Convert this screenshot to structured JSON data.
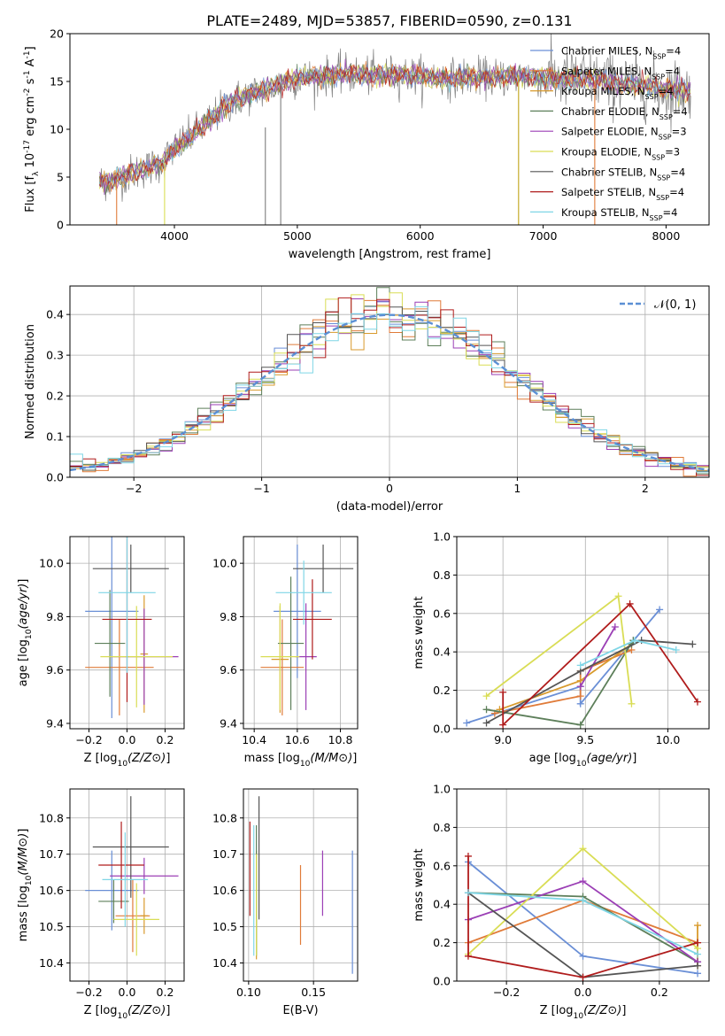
{
  "figure": {
    "title": "PLATE=2489, MJD=53857, FIBERID=0590, z=0.131"
  },
  "series": [
    {
      "name": "Chabrier MILES",
      "nssp": "4",
      "color": "#6a8fd6"
    },
    {
      "name": "Salpeter MILES",
      "nssp": "4",
      "color": "#e07b39"
    },
    {
      "name": "Kroupa MILES",
      "nssp": "4",
      "color": "#d89a2c"
    },
    {
      "name": "Chabrier ELODIE",
      "nssp": "4",
      "color": "#5d7f5a"
    },
    {
      "name": "Salpeter ELODIE",
      "nssp": "3",
      "color": "#9b3fb5"
    },
    {
      "name": "Kroupa ELODIE",
      "nssp": "3",
      "color": "#d9dd55"
    },
    {
      "name": "Chabrier STELIB",
      "nssp": "4",
      "color": "#555555"
    },
    {
      "name": "Salpeter STELIB",
      "nssp": "4",
      "color": "#b01c1c"
    },
    {
      "name": "Kroupa STELIB",
      "nssp": "4",
      "color": "#7fd6e6"
    }
  ],
  "chart_data": [
    {
      "id": "spectrum",
      "type": "line",
      "xlabel": "wavelength [Angstrom, rest frame]",
      "ylabel": "Flux [f_λ 10^-17 erg cm^-2 s^-1 A^-1]",
      "xlim": [
        3150,
        8350
      ],
      "ylim": [
        0,
        20
      ],
      "xticks": [
        4000,
        5000,
        6000,
        7000,
        8000
      ],
      "yticks": [
        0,
        5,
        10,
        15,
        20
      ],
      "grid": false,
      "legend": "top-right",
      "data_range_x": [
        3390,
        8200
      ],
      "continuum": [
        [
          3390,
          4.5
        ],
        [
          3500,
          4.6
        ],
        [
          3600,
          5.2
        ],
        [
          3700,
          5.6
        ],
        [
          3800,
          6.0
        ],
        [
          3900,
          6.5
        ],
        [
          4000,
          8.0
        ],
        [
          4100,
          8.9
        ],
        [
          4200,
          10.0
        ],
        [
          4300,
          11.0
        ],
        [
          4400,
          12.3
        ],
        [
          4500,
          13.1
        ],
        [
          4600,
          13.6
        ],
        [
          4700,
          14.0
        ],
        [
          4800,
          14.4
        ],
        [
          4900,
          15.0
        ],
        [
          5000,
          15.3
        ],
        [
          5200,
          15.5
        ],
        [
          5400,
          15.8
        ],
        [
          5600,
          15.6
        ],
        [
          5800,
          15.7
        ],
        [
          6000,
          15.6
        ],
        [
          6200,
          15.3
        ],
        [
          6400,
          15.5
        ],
        [
          6600,
          15.4
        ],
        [
          6800,
          15.6
        ],
        [
          7000,
          15.4
        ],
        [
          7200,
          15.2
        ],
        [
          7400,
          15.3
        ],
        [
          7600,
          14.8
        ],
        [
          7800,
          14.6
        ],
        [
          8000,
          14.2
        ],
        [
          8200,
          14.0
        ]
      ]
    },
    {
      "id": "residuals",
      "type": "line",
      "xlabel": "(data-model)/error",
      "ylabel": "Normed distribution",
      "xlim": [
        -2.5,
        2.5
      ],
      "ylim": [
        0,
        0.47
      ],
      "xticks": [
        -2,
        -1,
        0,
        1,
        2
      ],
      "yticks": [
        0.0,
        0.1,
        0.2,
        0.3,
        0.4
      ],
      "grid": true,
      "legend": "top-right",
      "reference_curve": {
        "label": "𝒩(0, 1)",
        "mean": 0,
        "sigma": 1,
        "color": "#5b8fd4"
      },
      "bins": {
        "start": -2.5,
        "width": 0.1,
        "count": 50
      }
    },
    {
      "id": "age-vs-Z",
      "type": "scatter",
      "xlabel": "Z [log10(Z/Z⊙)]",
      "ylabel": "age  [log10(age/yr)]",
      "xlim": [
        -0.3,
        0.3
      ],
      "ylim": [
        9.38,
        10.1
      ],
      "xticks": [
        -0.2,
        0.0,
        0.2
      ],
      "yticks": [
        9.4,
        9.6,
        9.8,
        10.0
      ],
      "grid": true,
      "points": [
        {
          "series": 0,
          "x": -0.08,
          "xerr": 0.14,
          "y": 9.82,
          "yerr": 0.4
        },
        {
          "series": 1,
          "x": -0.04,
          "xerr": 0.18,
          "y": 9.61,
          "yerr": 0.18
        },
        {
          "series": 2,
          "x": 0.09,
          "xerr": 0.02,
          "y": 9.66,
          "yerr": 0.22
        },
        {
          "series": 3,
          "x": -0.09,
          "xerr": 0.08,
          "y": 9.7,
          "yerr": 0.2
        },
        {
          "series": 4,
          "x": 0.09,
          "xerr": 0.18,
          "y": 9.65,
          "yerr": 0.18
        },
        {
          "series": 5,
          "x": 0.05,
          "xerr": 0.19,
          "y": 9.65,
          "yerr": 0.19
        },
        {
          "series": 6,
          "x": 0.02,
          "xerr": 0.2,
          "y": 9.98,
          "yerr": 0.09
        },
        {
          "series": 7,
          "x": 0.0,
          "xerr": 0.13,
          "y": 9.79,
          "yerr": 0.31
        },
        {
          "series": 8,
          "x": 0.0,
          "xerr": 0.15,
          "y": 9.89,
          "yerr": 0.3
        }
      ]
    },
    {
      "id": "age-vs-mass",
      "type": "scatter",
      "xlabel": "mass [log10(M/M⊙)]",
      "ylabel": "",
      "xlim": [
        10.35,
        10.88
      ],
      "ylim": [
        9.38,
        10.1
      ],
      "xticks": [
        10.4,
        10.6,
        10.8
      ],
      "yticks": [
        9.4,
        9.6,
        9.8,
        10.0
      ],
      "grid": true,
      "points": [
        {
          "series": 0,
          "x": 10.6,
          "xerr": 0.11,
          "y": 9.82,
          "yerr": 0.25
        },
        {
          "series": 1,
          "x": 10.53,
          "xerr": 0.1,
          "y": 9.61,
          "yerr": 0.18
        },
        {
          "series": 2,
          "x": 10.52,
          "xerr": 0.04,
          "y": 9.64,
          "yerr": 0.2
        },
        {
          "series": 3,
          "x": 10.57,
          "xerr": 0.06,
          "y": 9.7,
          "yerr": 0.25
        },
        {
          "series": 4,
          "x": 10.64,
          "xerr": 0.05,
          "y": 9.65,
          "yerr": 0.2
        },
        {
          "series": 5,
          "x": 10.52,
          "xerr": 0.09,
          "y": 9.65,
          "yerr": 0.2
        },
        {
          "series": 6,
          "x": 10.72,
          "xerr": 0.14,
          "y": 9.98,
          "yerr": 0.09
        },
        {
          "series": 7,
          "x": 10.67,
          "xerr": 0.09,
          "y": 9.79,
          "yerr": 0.15
        },
        {
          "series": 8,
          "x": 10.63,
          "xerr": 0.13,
          "y": 9.89,
          "yerr": 0.12
        }
      ]
    },
    {
      "id": "mass-weight-vs-age",
      "type": "line",
      "xlabel": "age  [log10(age/yr)]",
      "ylabel": "mass weight",
      "xlim": [
        8.72,
        10.25
      ],
      "ylim": [
        0,
        1.0
      ],
      "xticks": [
        9.0,
        9.5,
        10.0
      ],
      "yticks": [
        0.0,
        0.2,
        0.4,
        0.6,
        0.8,
        1.0
      ],
      "grid": true,
      "lines": [
        {
          "series": 0,
          "points": [
            [
              8.78,
              0.03
            ],
            [
              9.47,
              0.22
            ],
            [
              9.47,
              0.13
            ],
            [
              9.95,
              0.62
            ]
          ]
        },
        {
          "series": 1,
          "points": [
            [
              8.95,
              0.08
            ],
            [
              9.47,
              0.17
            ],
            [
              9.47,
              0.3
            ],
            [
              9.78,
              0.41
            ]
          ]
        },
        {
          "series": 2,
          "points": [
            [
              8.98,
              0.1
            ],
            [
              9.47,
              0.25
            ],
            [
              9.78,
              0.44
            ]
          ]
        },
        {
          "series": 3,
          "points": [
            [
              8.9,
              0.1
            ],
            [
              9.47,
              0.02
            ],
            [
              9.79,
              0.46
            ],
            [
              9.78,
              0.44
            ]
          ]
        },
        {
          "series": 4,
          "points": [
            [
              9.47,
              0.22
            ],
            [
              9.68,
              0.53
            ]
          ]
        },
        {
          "series": 5,
          "points": [
            [
              8.9,
              0.17
            ],
            [
              9.7,
              0.69
            ],
            [
              9.78,
              0.13
            ]
          ]
        },
        {
          "series": 6,
          "points": [
            [
              8.9,
              0.03
            ],
            [
              9.47,
              0.3
            ],
            [
              9.84,
              0.46
            ],
            [
              10.15,
              0.44
            ]
          ]
        },
        {
          "series": 7,
          "points": [
            [
              9.0,
              0.19
            ],
            [
              9.0,
              0.02
            ],
            [
              9.77,
              0.65
            ],
            [
              10.18,
              0.14
            ]
          ]
        },
        {
          "series": 8,
          "points": [
            [
              9.47,
              0.33
            ],
            [
              9.8,
              0.46
            ],
            [
              10.05,
              0.41
            ]
          ]
        }
      ]
    },
    {
      "id": "mass-vs-Z",
      "type": "scatter",
      "xlabel": "Z [log10(Z/Z⊙)]",
      "ylabel": "mass [log10(M/M⊙)]",
      "xlim": [
        -0.3,
        0.3
      ],
      "ylim": [
        10.35,
        10.88
      ],
      "xticks": [
        -0.2,
        0.0,
        0.2
      ],
      "yticks": [
        10.4,
        10.5,
        10.6,
        10.7,
        10.8
      ],
      "grid": true,
      "points": [
        {
          "series": 0,
          "x": -0.08,
          "xerr": 0.14,
          "y": 10.6,
          "yerr": 0.11
        },
        {
          "series": 1,
          "x": 0.03,
          "xerr": 0.09,
          "y": 10.53,
          "yerr": 0.1
        },
        {
          "series": 2,
          "x": 0.09,
          "xerr": 0.02,
          "y": 10.53,
          "yerr": 0.05
        },
        {
          "series": 3,
          "x": -0.07,
          "xerr": 0.08,
          "y": 10.57,
          "yerr": 0.06
        },
        {
          "series": 4,
          "x": 0.09,
          "xerr": 0.18,
          "y": 10.64,
          "yerr": 0.05
        },
        {
          "series": 5,
          "x": 0.05,
          "xerr": 0.12,
          "y": 10.52,
          "yerr": 0.1
        },
        {
          "series": 6,
          "x": 0.02,
          "xerr": 0.2,
          "y": 10.72,
          "yerr": 0.14
        },
        {
          "series": 7,
          "x": -0.03,
          "xerr": 0.12,
          "y": 10.67,
          "yerr": 0.12
        },
        {
          "series": 8,
          "x": -0.01,
          "xerr": 0.12,
          "y": 10.63,
          "yerr": 0.13
        }
      ]
    },
    {
      "id": "mass-vs-EBV",
      "type": "scatter",
      "xlabel": "E(B-V)",
      "ylabel": "",
      "xlim": [
        0.096,
        0.184
      ],
      "ylim": [
        10.35,
        10.88
      ],
      "xticks": [
        0.1,
        0.15
      ],
      "yticks": [
        10.4,
        10.5,
        10.6,
        10.7,
        10.8
      ],
      "grid": true,
      "points": [
        {
          "series": 0,
          "x": 0.18,
          "xerr": 0,
          "y": 10.54,
          "yerr": 0.17
        },
        {
          "series": 1,
          "x": 0.14,
          "xerr": 0,
          "y": 10.56,
          "yerr": 0.11
        },
        {
          "series": 2,
          "x": 0.106,
          "xerr": 0,
          "y": 10.56,
          "yerr": 0.15
        },
        {
          "series": 3,
          "x": 0.106,
          "xerr": 0,
          "y": 10.6,
          "yerr": 0.18
        },
        {
          "series": 4,
          "x": 0.157,
          "xerr": 0,
          "y": 10.62,
          "yerr": 0.09
        },
        {
          "series": 5,
          "x": 0.106,
          "xerr": 0,
          "y": 10.56,
          "yerr": 0.14
        },
        {
          "series": 6,
          "x": 0.108,
          "xerr": 0,
          "y": 10.69,
          "yerr": 0.17
        },
        {
          "series": 7,
          "x": 0.101,
          "xerr": 0,
          "y": 10.66,
          "yerr": 0.13
        },
        {
          "series": 8,
          "x": 0.104,
          "xerr": 0,
          "y": 10.6,
          "yerr": 0.18
        }
      ]
    },
    {
      "id": "mass-weight-vs-Z",
      "type": "line",
      "xlabel": "Z [log10(Z/Z⊙)]",
      "ylabel": "mass weight",
      "xlim": [
        -0.33,
        0.33
      ],
      "ylim": [
        0,
        1.0
      ],
      "xticks": [
        -0.2,
        0.0,
        0.2
      ],
      "yticks": [
        0.0,
        0.2,
        0.4,
        0.6,
        0.8,
        1.0
      ],
      "grid": true,
      "lines": [
        {
          "series": 0,
          "points": [
            [
              -0.3,
              0.62
            ],
            [
              0.0,
              0.13
            ],
            [
              0.3,
              0.04
            ]
          ]
        },
        {
          "series": 1,
          "points": [
            [
              -0.3,
              0.2
            ],
            [
              0.0,
              0.42
            ],
            [
              0.3,
              0.2
            ]
          ]
        },
        {
          "series": 2,
          "points": [
            [
              0.3,
              0.29
            ],
            [
              0.3,
              0.08
            ]
          ]
        },
        {
          "series": 3,
          "points": [
            [
              -0.3,
              0.46
            ],
            [
              0.0,
              0.44
            ],
            [
              0.3,
              0.1
            ]
          ]
        },
        {
          "series": 4,
          "points": [
            [
              -0.3,
              0.32
            ],
            [
              0.0,
              0.52
            ],
            [
              0.3,
              0.1
            ]
          ]
        },
        {
          "series": 5,
          "points": [
            [
              -0.3,
              0.14
            ],
            [
              0.0,
              0.69
            ],
            [
              0.3,
              0.17
            ]
          ]
        },
        {
          "series": 6,
          "points": [
            [
              -0.3,
              0.46
            ],
            [
              0.0,
              0.02
            ],
            [
              0.3,
              0.08
            ]
          ]
        },
        {
          "series": 7,
          "points": [
            [
              -0.3,
              0.65
            ],
            [
              -0.3,
              0.13
            ],
            [
              0.0,
              0.02
            ],
            [
              0.3,
              0.2
            ]
          ]
        },
        {
          "series": 8,
          "points": [
            [
              -0.3,
              0.46
            ],
            [
              0.0,
              0.42
            ],
            [
              0.3,
              0.14
            ]
          ]
        }
      ]
    }
  ]
}
